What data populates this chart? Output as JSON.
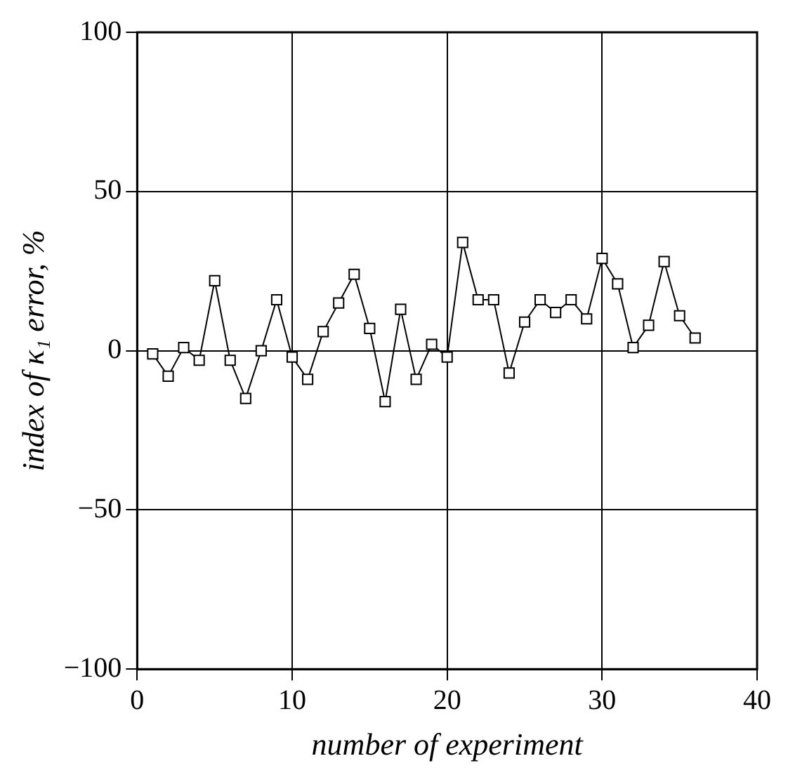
{
  "chart_data": {
    "type": "line",
    "xlabel": "number of experiment",
    "ylabel": "index of κ₁ error, %",
    "x": [
      1,
      2,
      3,
      4,
      5,
      6,
      7,
      8,
      9,
      10,
      11,
      12,
      13,
      14,
      15,
      16,
      17,
      18,
      19,
      20,
      21,
      22,
      23,
      24,
      25,
      26,
      27,
      28,
      29,
      30,
      31,
      32,
      33,
      34,
      35,
      36
    ],
    "series": [
      {
        "color": "#000000",
        "values": [
          -1,
          -8,
          1,
          -3,
          22,
          -3,
          -15,
          0,
          16,
          -2,
          -9,
          6,
          15,
          24,
          7,
          -16,
          13,
          -9,
          2,
          -2,
          34,
          16,
          16,
          -7,
          9,
          16,
          12,
          16,
          10,
          29,
          21,
          1,
          8,
          28,
          11,
          4
        ]
      }
    ],
    "xlim": [
      0,
      40
    ],
    "xticks": [
      0,
      10,
      20,
      30,
      40
    ],
    "ylim": [
      -100,
      100
    ],
    "yticks": [
      -100,
      -50,
      0,
      50,
      100
    ],
    "grid": true,
    "marker": "square",
    "line_style": "solid",
    "legend": false
  }
}
